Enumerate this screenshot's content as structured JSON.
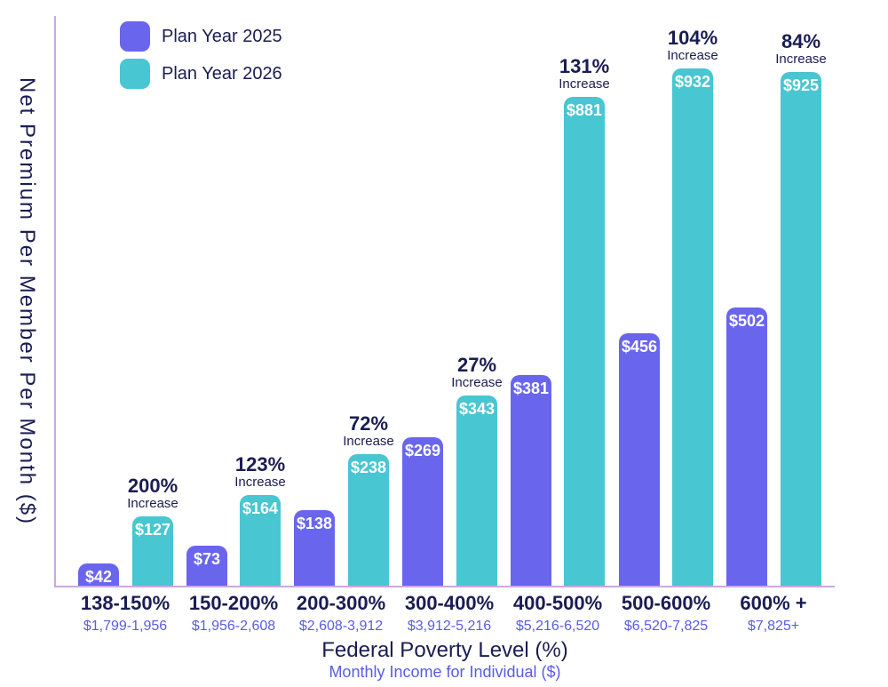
{
  "colors": {
    "bar_2025": "#6966ED",
    "bar_2026": "#48C6D1",
    "navy_text": "#1A1D52",
    "purple_text": "#5A5BE4",
    "axis_line": "#CDA6E4",
    "value_text": "#FFFFFF",
    "background": "#FFFFFF"
  },
  "legend": {
    "items": [
      {
        "label": "Plan Year 2025",
        "color": "#6966ED"
      },
      {
        "label": "Plan Year 2026",
        "color": "#48C6D1"
      }
    ]
  },
  "chart_data": {
    "type": "bar",
    "title": "",
    "ylabel": "Net Premium Per Member Per Month ($)",
    "xlabel": "Federal Poverty Level (%)",
    "xlabel_sub": "Monthly Income for Individual ($)",
    "categories": [
      "138-150%",
      "150-200%",
      "200-300%",
      "300-400%",
      "400-500%",
      "500-600%",
      "600% +"
    ],
    "category_sublabels": [
      "$1,799-1,956",
      "$1,956-2,608",
      "$2,608-3,912",
      "$3,912-5,216",
      "$5,216-6,520",
      "$6,520-7,825",
      "$7,825+"
    ],
    "series": [
      {
        "name": "Plan Year 2025",
        "color": "#6966ED",
        "values": [
          42,
          73,
          138,
          269,
          381,
          456,
          502
        ],
        "labels": [
          "$42",
          "$73",
          "$138",
          "$269",
          "$381",
          "$456",
          "$502"
        ]
      },
      {
        "name": "Plan Year 2026",
        "color": "#48C6D1",
        "values": [
          127,
          164,
          238,
          343,
          881,
          932,
          925
        ],
        "labels": [
          "$127",
          "$164",
          "$238",
          "$343",
          "$881",
          "$932",
          "$925"
        ]
      }
    ],
    "increase_labels": [
      "200%",
      "123%",
      "72%",
      "27%",
      "131%",
      "104%",
      "84%"
    ],
    "increase_word": "Increase",
    "ylim": [
      0,
      960
    ],
    "grid": false,
    "legend_position": "top-left"
  }
}
